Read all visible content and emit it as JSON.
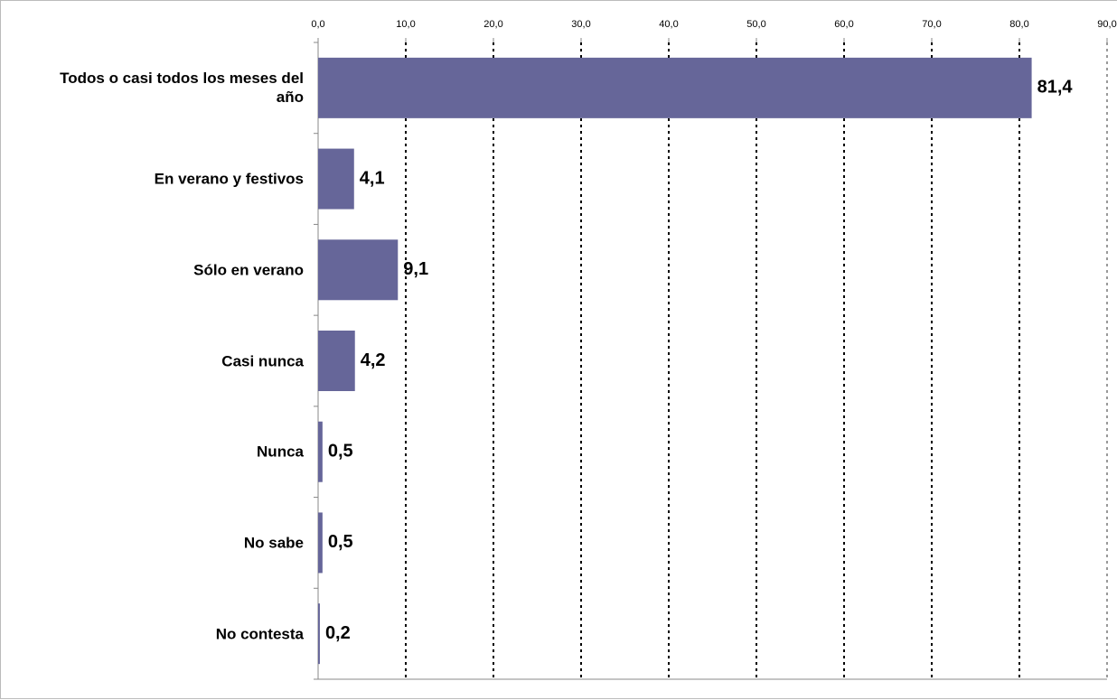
{
  "chart_data": {
    "type": "bar",
    "orientation": "horizontal",
    "categories": [
      "Todos o casi todos los meses del año",
      "En verano y festivos",
      "Sólo en verano",
      "Casi nunca",
      "Nunca",
      "No sabe",
      "No contesta"
    ],
    "values": [
      81.4,
      4.1,
      9.1,
      4.2,
      0.5,
      0.5,
      0.2
    ],
    "value_labels": [
      "81,4",
      "4,1",
      "9,1",
      "4,2",
      "0,5",
      "0,5",
      "0,2"
    ],
    "color": "#666699",
    "xlim": [
      0,
      90
    ],
    "xticks": [
      {
        "value": 0,
        "label": "0,0"
      },
      {
        "value": 10,
        "label": "10,0"
      },
      {
        "value": 20,
        "label": "20,0"
      },
      {
        "value": 30,
        "label": "30,0"
      },
      {
        "value": 40,
        "label": "40,0"
      },
      {
        "value": 50,
        "label": "50,0"
      },
      {
        "value": 60,
        "label": "60,0"
      },
      {
        "value": 70,
        "label": "70,0"
      },
      {
        "value": 80,
        "label": "80,0"
      },
      {
        "value": 90,
        "label": "90,0"
      }
    ],
    "grid": true
  }
}
